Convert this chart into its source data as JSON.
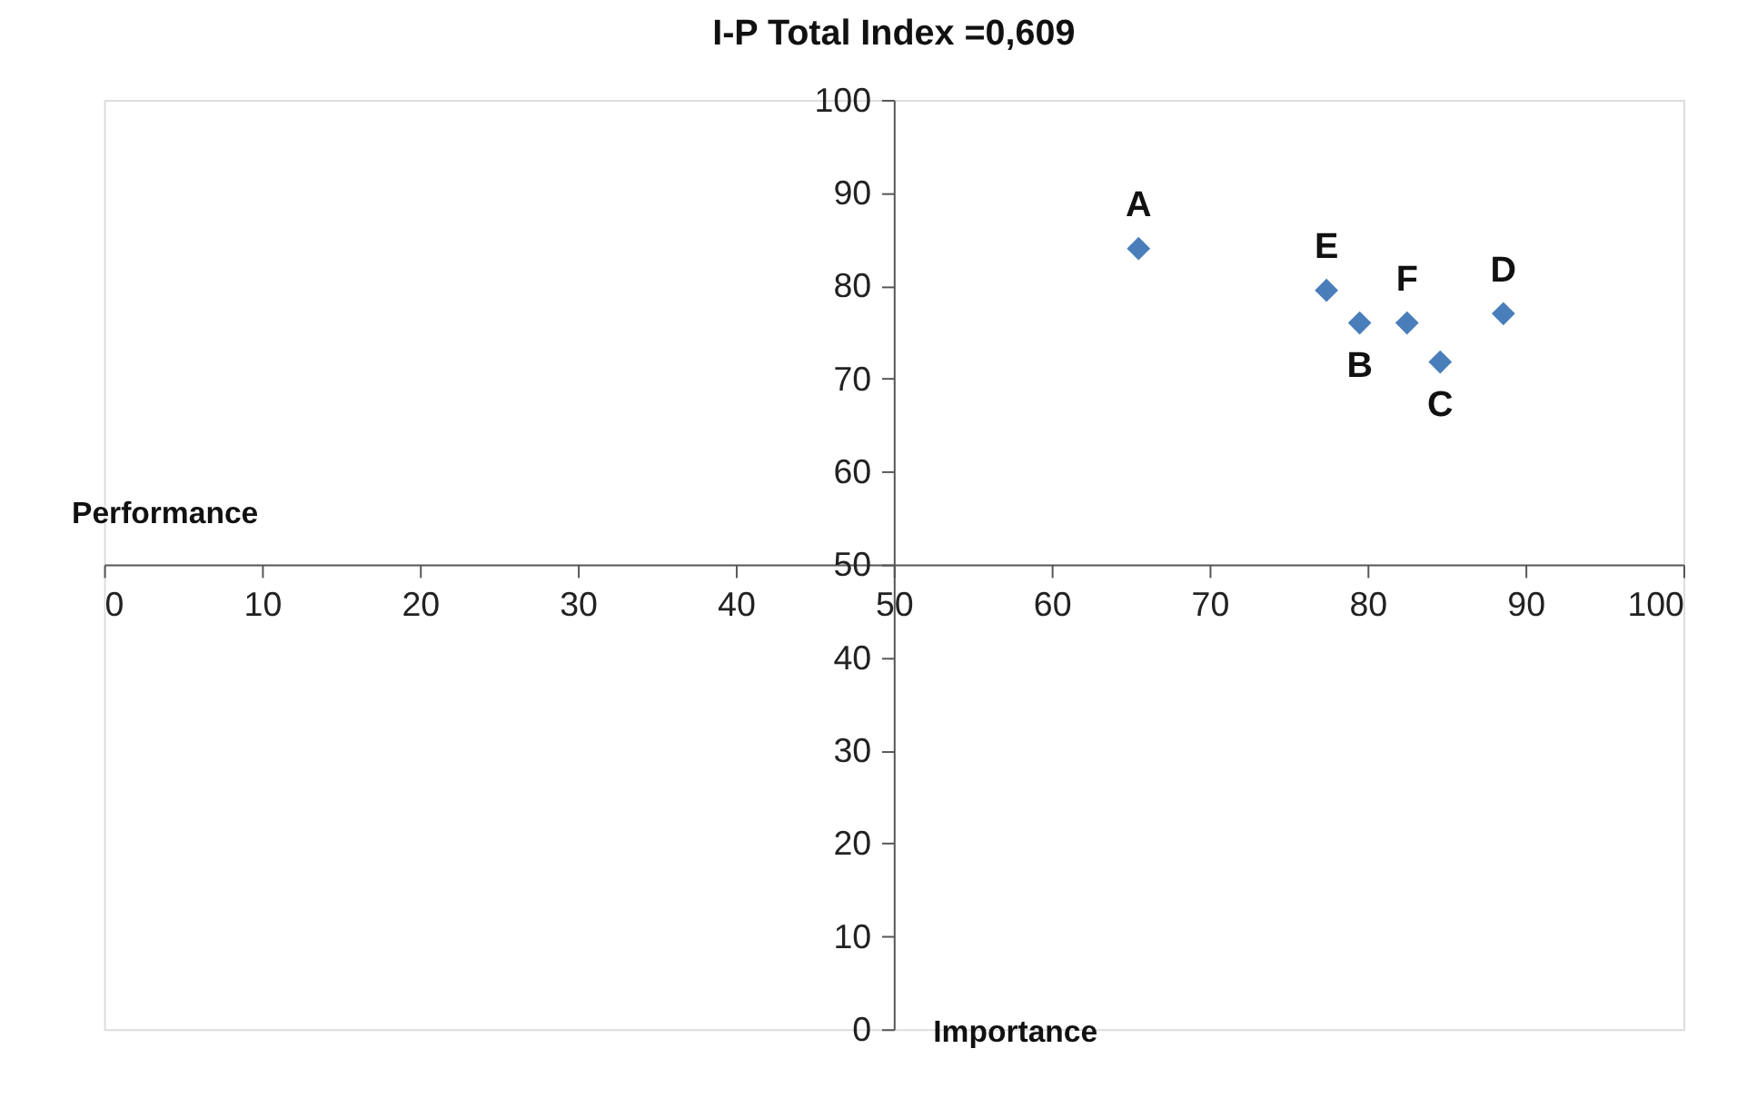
{
  "chart_data": {
    "type": "scatter",
    "title": "I-P Total Index =0,609",
    "xlabel": "Importance",
    "ylabel": "Performance",
    "x": [
      65.5,
      79.5,
      84.6,
      88.6,
      77.4,
      82.5
    ],
    "series": [
      {
        "color": "#4a7ebb",
        "values": [
          84,
          76,
          71.8,
          77,
          79.5,
          76
        ]
      }
    ],
    "marker": "diamond",
    "grid": false,
    "xlim": [
      0,
      100
    ],
    "ylim": [
      0,
      100
    ],
    "xticks": [
      0,
      10,
      20,
      30,
      40,
      50,
      60,
      70,
      80,
      90,
      100
    ],
    "yticks": [
      0,
      10,
      20,
      30,
      40,
      50,
      60,
      70,
      80,
      90,
      100
    ],
    "annotations": [
      {
        "text": "A",
        "x": 65.5,
        "y": 84
      },
      {
        "text": "B",
        "x": 79.5,
        "y": 76
      },
      {
        "text": "C",
        "x": 84.6,
        "y": 71.8
      },
      {
        "text": "D",
        "x": 88.6,
        "y": 77
      },
      {
        "text": "E",
        "x": 77.4,
        "y": 79.5
      },
      {
        "text": "F",
        "x": 82.5,
        "y": 76
      }
    ]
  }
}
